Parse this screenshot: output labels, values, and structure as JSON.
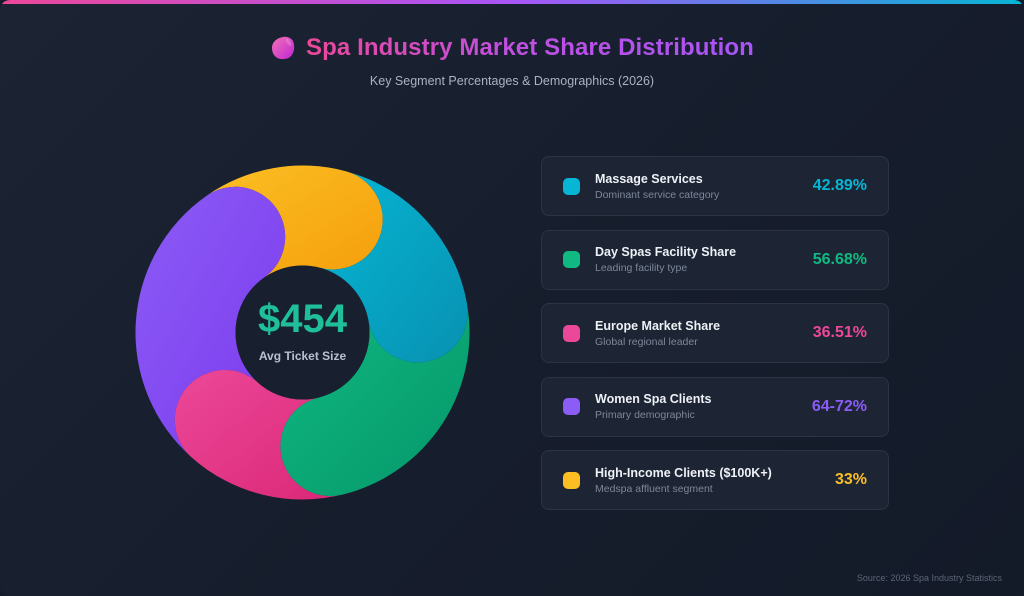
{
  "header": {
    "title": "Spa Industry Market Share Distribution",
    "subtitle": "Key Segment Percentages & Demographics (2026)",
    "icon": "blob-icon"
  },
  "center": {
    "value": "$454",
    "caption": "Avg Ticket Size"
  },
  "legend": [
    {
      "label": "Massage Services",
      "desc": "Dominant service category",
      "value": "42.89%",
      "color": "#06b6d4"
    },
    {
      "label": "Day Spas Facility Share",
      "desc": "Leading facility type",
      "value": "56.68%",
      "color": "#10b981"
    },
    {
      "label": "Europe Market Share",
      "desc": "Global regional leader",
      "value": "36.51%",
      "color": "#ec4899"
    },
    {
      "label": "Women Spa Clients",
      "desc": "Primary demographic",
      "value": "64-72%",
      "color": "#8b5cf6"
    },
    {
      "label": "High-Income Clients ($100K+)",
      "desc": "Medspa affluent segment",
      "value": "33%",
      "color": "#fbbf24"
    }
  ],
  "source": "Source: 2026 Spa Industry Statistics",
  "chart_data": {
    "type": "pie",
    "categories": [
      "Massage Services",
      "Day Spas Facility Share",
      "Europe Market Share",
      "Women Spa Clients",
      "High-Income Clients ($100K+)"
    ],
    "values": [
      42.89,
      56.68,
      36.51,
      68,
      33
    ],
    "colors": [
      "#06b6d4",
      "#10b981",
      "#ec4899",
      "#8b5cf6",
      "#fbbf24"
    ],
    "title": "Spa Industry Market Share Distribution",
    "subtitle": "Key Segment Percentages & Demographics (2026)",
    "style": "donut",
    "legend": "right"
  }
}
